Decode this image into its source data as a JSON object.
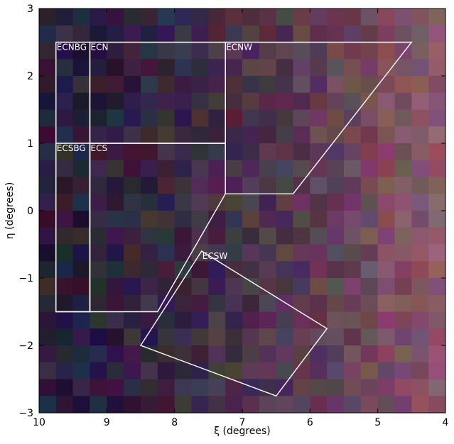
{
  "chart_data": {
    "type": "heatmap",
    "title": "",
    "xlabel": "ξ (degrees)",
    "ylabel": "η (degrees)",
    "xlim": [
      10,
      4
    ],
    "ylim": [
      -3,
      3
    ],
    "x_ticks": [
      10,
      9,
      8,
      7,
      6,
      5,
      4
    ],
    "y_ticks": [
      3,
      2,
      1,
      0,
      -1,
      -2,
      -3
    ],
    "x_tick_labels": [
      "10",
      "9",
      "8",
      "7",
      "6",
      "5",
      "4"
    ],
    "y_tick_labels": [
      "3",
      "2",
      "1",
      "0",
      "−1",
      "−2",
      "−3"
    ],
    "grid": false,
    "heatmap": {
      "x_range": [
        10,
        4
      ],
      "y_range": [
        3,
        -3
      ],
      "columns": 24,
      "rows": 24,
      "base_color": "#3a2f4a",
      "left_color": "#2a1f3a",
      "right_color": "#8a5a6a",
      "seed": 7
    },
    "bright_cells": [
      {
        "xi": 9.07,
        "eta": -1.86,
        "color": "#3d5cff"
      },
      {
        "xi": 9.07,
        "eta": -2.11,
        "color": "#4747e0"
      },
      {
        "xi": 6.07,
        "eta": -2.86,
        "color": "#3b26e0"
      },
      {
        "xi": 7.07,
        "eta": 1.64,
        "color": "#3b6a4a"
      },
      {
        "xi": 8.58,
        "eta": 0.39,
        "color": "#3a7a5a"
      }
    ],
    "fields": [
      {
        "name": "ECNBG",
        "label": "ECNBG",
        "polygon": [
          [
            9.75,
            2.5
          ],
          [
            9.25,
            2.5
          ],
          [
            9.25,
            -1.5
          ],
          [
            9.75,
            -1.5
          ]
        ]
      },
      {
        "name": "ECN",
        "label": "ECN",
        "polygon": [
          [
            9.25,
            2.5
          ],
          [
            7.25,
            2.5
          ],
          [
            7.25,
            1.0
          ],
          [
            9.25,
            1.0
          ]
        ]
      },
      {
        "name": "ECNW",
        "label": "ECNW",
        "polygon": [
          [
            7.25,
            2.5
          ],
          [
            4.5,
            2.5
          ],
          [
            6.25,
            0.25
          ],
          [
            7.25,
            0.25
          ]
        ]
      },
      {
        "name": "ECSBG",
        "label": "ECSBG",
        "polygon": [
          [
            9.75,
            1.0
          ],
          [
            9.25,
            1.0
          ],
          [
            9.25,
            -1.5
          ],
          [
            9.75,
            -1.5
          ]
        ]
      },
      {
        "name": "ECS",
        "label": "ECS",
        "polygon": [
          [
            9.25,
            1.0
          ],
          [
            7.25,
            1.0
          ],
          [
            7.25,
            0.25
          ],
          [
            8.25,
            -1.5
          ],
          [
            9.25,
            -1.5
          ]
        ]
      },
      {
        "name": "ECSW",
        "label": "ECSW",
        "polygon": [
          [
            7.6,
            -0.6
          ],
          [
            5.75,
            -1.75
          ],
          [
            6.5,
            -2.75
          ],
          [
            8.5,
            -2.0
          ]
        ]
      }
    ],
    "outlined_cells": [
      {
        "xi": 8.12,
        "eta": 1.62
      },
      {
        "xi": 7.88,
        "eta": 1.62
      },
      {
        "xi": 7.62,
        "eta": 1.62
      },
      {
        "xi": 7.38,
        "eta": 1.62
      },
      {
        "xi": 8.12,
        "eta": 1.88
      },
      {
        "xi": 7.88,
        "eta": 1.88
      },
      {
        "xi": 7.62,
        "eta": 1.88
      },
      {
        "xi": 7.38,
        "eta": 1.88
      },
      {
        "xi": 7.88,
        "eta": 2.12
      },
      {
        "xi": 7.62,
        "eta": 2.12
      },
      {
        "xi": 7.38,
        "eta": 2.12
      },
      {
        "xi": 8.62,
        "eta": 0.88
      },
      {
        "xi": 8.38,
        "eta": 0.88
      },
      {
        "xi": 8.62,
        "eta": 0.62
      },
      {
        "xi": 8.38,
        "eta": 0.62
      },
      {
        "xi": 8.62,
        "eta": 0.38
      },
      {
        "xi": 8.62,
        "eta": 0.12
      },
      {
        "xi": 8.62,
        "eta": -0.12
      },
      {
        "xi": 8.62,
        "eta": -0.38
      },
      {
        "xi": 8.62,
        "eta": -0.62
      },
      {
        "xi": 8.38,
        "eta": -0.62
      },
      {
        "xi": 8.62,
        "eta": -0.88
      },
      {
        "xi": 8.38,
        "eta": -0.88
      },
      {
        "xi": 8.62,
        "eta": -1.12
      }
    ]
  }
}
